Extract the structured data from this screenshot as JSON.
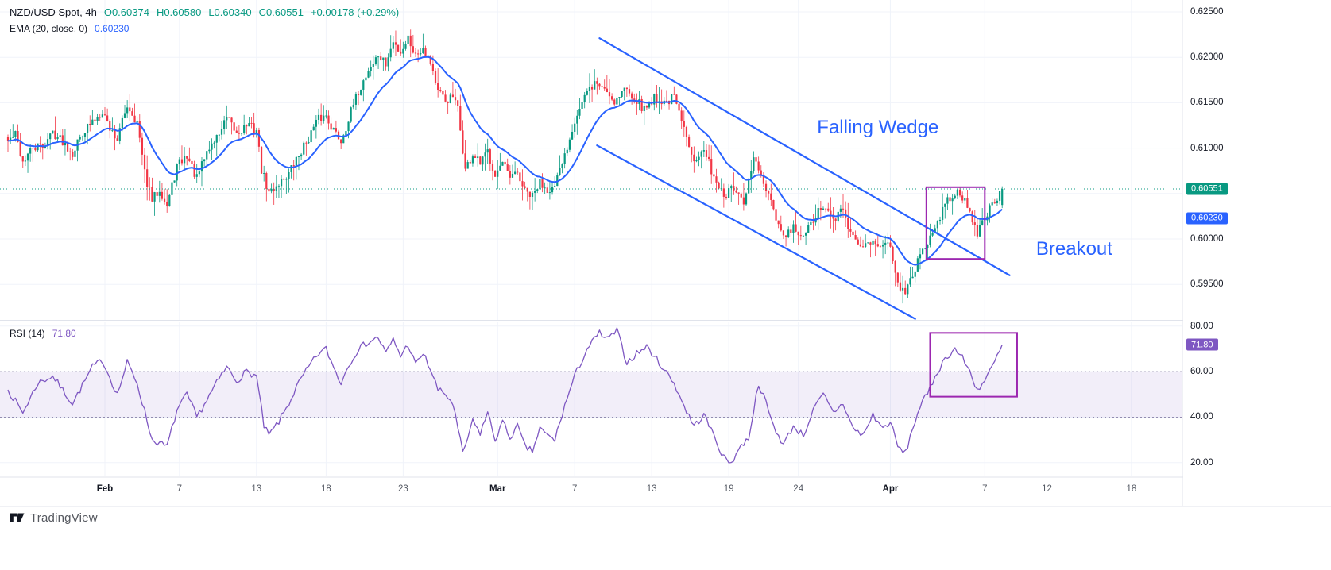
{
  "header": {
    "symbol_title": "NZD/USD Spot, 4h",
    "open": "O0.60374",
    "high": "H0.60580",
    "low": "L0.60340",
    "close": "C0.60551",
    "change": "+0.00178 (+0.29%)",
    "ema_label": "EMA (20, close, 0)",
    "ema_value": "0.60230"
  },
  "rsi_header": {
    "label": "RSI (14)",
    "value": "71.80"
  },
  "badges": {
    "last_price": {
      "text": "0.60551",
      "value": 0.60551
    },
    "ema": {
      "text": "0.60230",
      "value": 0.6023
    },
    "rsi": {
      "text": "71.80",
      "value": 71.8
    }
  },
  "colors": {
    "up": "#089981",
    "down": "#F23645",
    "ema": "#2962FF",
    "trendline": "#2962FF",
    "annotation": "#2962FF",
    "rsi": "#7E57C2",
    "rsi_band": "rgba(126,87,194,0.10)",
    "rsi_band_edge": "#938cb0",
    "rect": "#9C27B0",
    "last_price_line": "#089981",
    "grid": "#f0f3fa",
    "separator": "#e0e3eb"
  },
  "price_axis": {
    "values": [
      0.625,
      0.62,
      0.615,
      0.61,
      0.6,
      0.595
    ],
    "decimals": 5
  },
  "rsi_axis": {
    "values": [
      80,
      60,
      40,
      20
    ],
    "decimals": 2
  },
  "time_axis": {
    "ticks": [
      {
        "label": "Feb",
        "i": 39,
        "major": true
      },
      {
        "label": "7",
        "i": 69
      },
      {
        "label": "13",
        "i": 100
      },
      {
        "label": "18",
        "i": 128
      },
      {
        "label": "23",
        "i": 159
      },
      {
        "label": "Mar",
        "i": 197,
        "major": true
      },
      {
        "label": "7",
        "i": 228
      },
      {
        "label": "13",
        "i": 259
      },
      {
        "label": "19",
        "i": 290
      },
      {
        "label": "24",
        "i": 318
      },
      {
        "label": "Apr",
        "i": 355,
        "major": true
      },
      {
        "label": "7",
        "i": 393
      },
      {
        "label": "12",
        "i": 418
      },
      {
        "label": "18",
        "i": 452
      }
    ]
  },
  "footer": {
    "brand": "TradingView"
  },
  "chart_data": [
    {
      "type": "candlestick",
      "title": "NZD/USD Spot",
      "interval": "4h",
      "ylim": [
        0.5911,
        0.6263
      ],
      "last_candle": {
        "o": 0.60374,
        "h": 0.6058,
        "l": 0.6034,
        "c": 0.60551
      },
      "change": {
        "abs": 0.00178,
        "pct": 0.29
      },
      "ema": {
        "period": 20,
        "source": "close",
        "offset": 0,
        "value": 0.6023
      },
      "close_path": [
        [
          0,
          0.6108
        ],
        [
          3,
          0.6115
        ],
        [
          6,
          0.6085
        ],
        [
          10,
          0.61
        ],
        [
          14,
          0.6102
        ],
        [
          18,
          0.6118
        ],
        [
          22,
          0.6108
        ],
        [
          26,
          0.6095
        ],
        [
          30,
          0.6118
        ],
        [
          34,
          0.6128
        ],
        [
          38,
          0.6142
        ],
        [
          41,
          0.6122
        ],
        [
          44,
          0.611
        ],
        [
          48,
          0.6148
        ],
        [
          52,
          0.6128
        ],
        [
          55,
          0.6072
        ],
        [
          58,
          0.6042
        ],
        [
          61,
          0.6056
        ],
        [
          64,
          0.6036
        ],
        [
          68,
          0.608
        ],
        [
          72,
          0.6092
        ],
        [
          76,
          0.6066
        ],
        [
          80,
          0.6096
        ],
        [
          84,
          0.6112
        ],
        [
          88,
          0.6132
        ],
        [
          92,
          0.6116
        ],
        [
          96,
          0.6126
        ],
        [
          100,
          0.612
        ],
        [
          102,
          0.6076
        ],
        [
          105,
          0.605
        ],
        [
          109,
          0.6062
        ],
        [
          113,
          0.6072
        ],
        [
          117,
          0.6092
        ],
        [
          121,
          0.6112
        ],
        [
          125,
          0.6132
        ],
        [
          128,
          0.6136
        ],
        [
          131,
          0.612
        ],
        [
          134,
          0.6108
        ],
        [
          137,
          0.6132
        ],
        [
          141,
          0.6162
        ],
        [
          145,
          0.6186
        ],
        [
          149,
          0.6202
        ],
        [
          152,
          0.6192
        ],
        [
          155,
          0.6216
        ],
        [
          158,
          0.6206
        ],
        [
          161,
          0.6222
        ],
        [
          164,
          0.6202
        ],
        [
          167,
          0.6212
        ],
        [
          170,
          0.6196
        ],
        [
          173,
          0.6162
        ],
        [
          176,
          0.6152
        ],
        [
          179,
          0.6156
        ],
        [
          181,
          0.6142
        ],
        [
          184,
          0.6076
        ],
        [
          187,
          0.6092
        ],
        [
          190,
          0.6082
        ],
        [
          193,
          0.6096
        ],
        [
          196,
          0.6072
        ],
        [
          199,
          0.6082
        ],
        [
          202,
          0.6066
        ],
        [
          205,
          0.6072
        ],
        [
          208,
          0.6052
        ],
        [
          211,
          0.6046
        ],
        [
          214,
          0.6062
        ],
        [
          217,
          0.6056
        ],
        [
          220,
          0.6056
        ],
        [
          224,
          0.6092
        ],
        [
          228,
          0.6132
        ],
        [
          232,
          0.6156
        ],
        [
          236,
          0.6172
        ],
        [
          240,
          0.6166
        ],
        [
          244,
          0.6152
        ],
        [
          248,
          0.6166
        ],
        [
          252,
          0.6156
        ],
        [
          256,
          0.6142
        ],
        [
          260,
          0.6156
        ],
        [
          264,
          0.615
        ],
        [
          268,
          0.6156
        ],
        [
          272,
          0.612
        ],
        [
          276,
          0.609
        ],
        [
          280,
          0.6096
        ],
        [
          284,
          0.607
        ],
        [
          288,
          0.6046
        ],
        [
          292,
          0.6056
        ],
        [
          296,
          0.6036
        ],
        [
          300,
          0.609
        ],
        [
          304,
          0.606
        ],
        [
          308,
          0.603
        ],
        [
          312,
          0.6
        ],
        [
          316,
          0.6012
        ],
        [
          320,
          0.6
        ],
        [
          324,
          0.6022
        ],
        [
          328,
          0.6036
        ],
        [
          332,
          0.602
        ],
        [
          336,
          0.6032
        ],
        [
          340,
          0.6
        ],
        [
          344,
          0.599
        ],
        [
          348,
          0.6002
        ],
        [
          352,
          0.599
        ],
        [
          355,
          0.5996
        ],
        [
          358,
          0.595
        ],
        [
          361,
          0.5938
        ],
        [
          364,
          0.596
        ],
        [
          367,
          0.5986
        ],
        [
          370,
          0.5996
        ],
        [
          373,
          0.6012
        ],
        [
          376,
          0.6032
        ],
        [
          379,
          0.6046
        ],
        [
          382,
          0.6056
        ],
        [
          385,
          0.604
        ],
        [
          388,
          0.602
        ],
        [
          390,
          0.6008
        ],
        [
          393,
          0.6022
        ],
        [
          396,
          0.604
        ],
        [
          399,
          0.605
        ],
        [
          400,
          0.60551
        ]
      ],
      "annotations": {
        "trendlines": [
          {
            "name": "wedge-upper",
            "i1": 238,
            "p1": 0.6221,
            "i2": 403,
            "p2": 0.596
          },
          {
            "name": "wedge-lower",
            "i1": 237,
            "p1": 0.6103,
            "i2": 365,
            "p2": 0.5912
          }
        ],
        "rect": {
          "i1": 369.5,
          "i2": 393,
          "p1": 0.5978,
          "p2": 0.6057
        },
        "labels": [
          {
            "text": "Falling Wedge",
            "i": 350,
            "p": 0.6122
          },
          {
            "text": "Breakout",
            "i": 429,
            "p": 0.5988
          }
        ],
        "last_price_level": 0.60551
      }
    },
    {
      "type": "line",
      "title": "RSI (14)",
      "value": 71.8,
      "upper_band": 60,
      "lower_band": 40,
      "ylim": [
        14,
        82
      ],
      "rsi_path": [
        [
          0,
          52
        ],
        [
          6,
          42
        ],
        [
          12,
          55
        ],
        [
          18,
          58
        ],
        [
          26,
          46
        ],
        [
          34,
          62
        ],
        [
          38,
          65
        ],
        [
          44,
          50
        ],
        [
          48,
          64
        ],
        [
          52,
          55
        ],
        [
          58,
          30
        ],
        [
          64,
          27
        ],
        [
          68,
          43
        ],
        [
          72,
          50
        ],
        [
          76,
          40
        ],
        [
          84,
          55
        ],
        [
          88,
          62
        ],
        [
          92,
          56
        ],
        [
          96,
          60
        ],
        [
          100,
          58
        ],
        [
          103,
          36
        ],
        [
          105,
          32
        ],
        [
          109,
          38
        ],
        [
          113,
          46
        ],
        [
          117,
          55
        ],
        [
          121,
          62
        ],
        [
          125,
          68
        ],
        [
          128,
          70
        ],
        [
          131,
          62
        ],
        [
          134,
          55
        ],
        [
          137,
          63
        ],
        [
          141,
          70
        ],
        [
          145,
          73
        ],
        [
          149,
          75
        ],
        [
          152,
          68
        ],
        [
          155,
          74
        ],
        [
          158,
          67
        ],
        [
          161,
          72
        ],
        [
          164,
          63
        ],
        [
          167,
          68
        ],
        [
          170,
          61
        ],
        [
          173,
          52
        ],
        [
          176,
          50
        ],
        [
          179,
          46
        ],
        [
          183,
          24
        ],
        [
          187,
          38
        ],
        [
          190,
          33
        ],
        [
          193,
          42
        ],
        [
          196,
          30
        ],
        [
          199,
          38
        ],
        [
          202,
          31
        ],
        [
          205,
          36
        ],
        [
          208,
          27
        ],
        [
          211,
          25
        ],
        [
          214,
          35
        ],
        [
          217,
          32
        ],
        [
          220,
          30
        ],
        [
          224,
          45
        ],
        [
          228,
          58
        ],
        [
          233,
          70
        ],
        [
          238,
          77
        ],
        [
          241,
          74
        ],
        [
          245,
          78
        ],
        [
          249,
          64
        ],
        [
          253,
          68
        ],
        [
          257,
          71
        ],
        [
          262,
          64
        ],
        [
          268,
          55
        ],
        [
          272,
          45
        ],
        [
          276,
          36
        ],
        [
          280,
          41
        ],
        [
          284,
          32
        ],
        [
          288,
          22
        ],
        [
          291,
          20
        ],
        [
          294,
          26
        ],
        [
          298,
          31
        ],
        [
          302,
          55
        ],
        [
          305,
          46
        ],
        [
          308,
          36
        ],
        [
          312,
          28
        ],
        [
          316,
          36
        ],
        [
          320,
          32
        ],
        [
          324,
          43
        ],
        [
          328,
          50
        ],
        [
          332,
          42
        ],
        [
          336,
          46
        ],
        [
          340,
          35
        ],
        [
          344,
          32
        ],
        [
          348,
          41
        ],
        [
          352,
          35
        ],
        [
          355,
          38
        ],
        [
          358,
          27
        ],
        [
          361,
          24
        ],
        [
          364,
          35
        ],
        [
          367,
          45
        ],
        [
          370,
          50
        ],
        [
          373,
          58
        ],
        [
          376,
          64
        ],
        [
          379,
          68
        ],
        [
          381,
          70
        ],
        [
          384,
          66
        ],
        [
          387,
          60
        ],
        [
          390,
          52
        ],
        [
          393,
          56
        ],
        [
          396,
          62
        ],
        [
          399,
          69
        ],
        [
          400,
          71.8
        ]
      ],
      "rect": {
        "i1": 371,
        "i2": 406,
        "v1": 49,
        "v2": 77
      }
    }
  ]
}
